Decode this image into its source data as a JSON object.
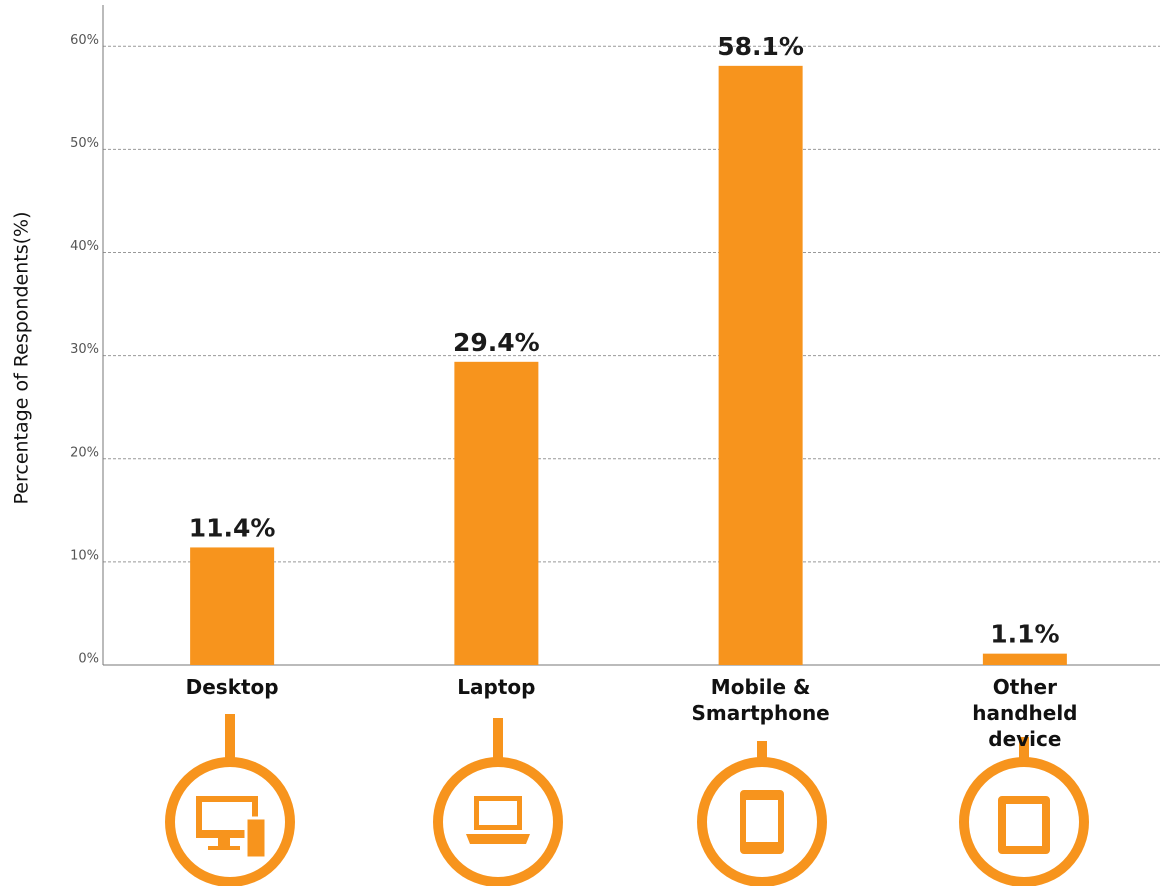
{
  "chart_data": {
    "type": "bar",
    "y_label": "Percentage of Respondents(%)",
    "categories": [
      "Desktop",
      "Laptop",
      "Mobile & Smartphone",
      "Other handheld device"
    ],
    "values": [
      11.4,
      29.4,
      58.1,
      1.1
    ],
    "value_labels": [
      "11.4%",
      "29.4%",
      "58.1%",
      "1.1%"
    ],
    "color": "#f7941d",
    "ylim": [
      0,
      64
    ],
    "yticks": [
      {
        "value": 0,
        "label": "0%"
      },
      {
        "value": 10,
        "label": "10%"
      },
      {
        "value": 20,
        "label": "20%"
      },
      {
        "value": 30,
        "label": "30%"
      },
      {
        "value": 40,
        "label": "40%"
      },
      {
        "value": 50,
        "label": "50%"
      },
      {
        "value": 60,
        "label": "60%"
      }
    ],
    "grid": true
  }
}
